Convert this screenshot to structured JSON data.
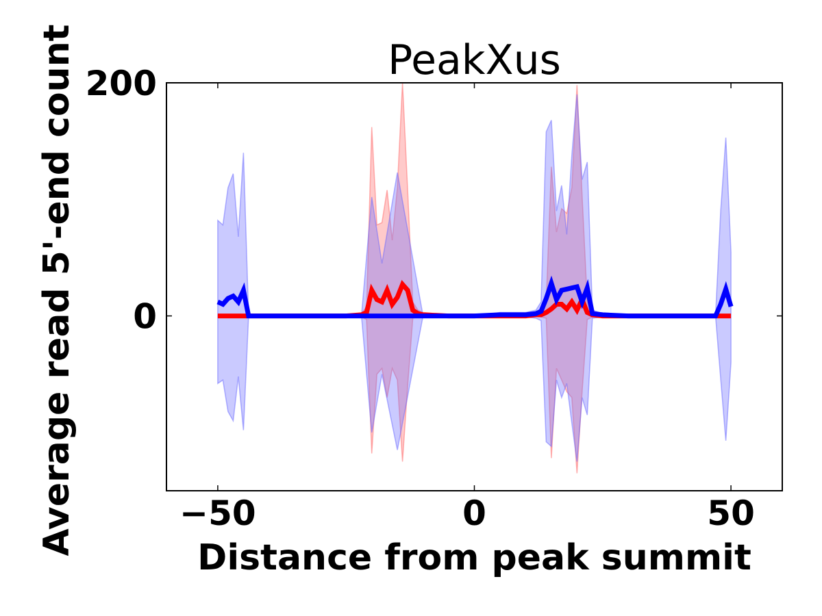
{
  "chart_data": {
    "type": "line",
    "title": "PeakXus",
    "xlabel": "Distance from peak summit",
    "ylabel": "Average read 5'-end count",
    "xlim": [
      -60,
      60
    ],
    "ylim": [
      -150,
      200
    ],
    "xticks": [
      -50,
      0,
      50
    ],
    "xtick_labels": [
      "−50",
      "0",
      "50"
    ],
    "yticks": [
      0,
      200
    ],
    "ytick_labels": [
      "0",
      "200"
    ],
    "grid": false,
    "legend": "none",
    "series": [
      {
        "color": "#ff0000",
        "band_color": "#ff6666",
        "x": [
          -50,
          -45,
          -44,
          -40,
          -30,
          -25,
          -22,
          -21,
          -20,
          -19,
          -18,
          -17,
          -16,
          -15,
          -14,
          -13,
          -12,
          -11,
          -10,
          -5,
          0,
          5,
          10,
          12,
          13,
          14,
          15,
          16,
          17,
          18,
          19,
          20,
          21,
          22,
          23,
          25,
          30,
          40,
          45,
          49,
          50
        ],
        "values": [
          0,
          0,
          0,
          0,
          0,
          0,
          1,
          3,
          22,
          14,
          12,
          22,
          10,
          16,
          27,
          22,
          5,
          2,
          1,
          0,
          0,
          0,
          0,
          1,
          1,
          3,
          6,
          10,
          10,
          6,
          12,
          5,
          14,
          3,
          1,
          0,
          0,
          0,
          0,
          0,
          0
        ],
        "upper": [
          0,
          0,
          0,
          0,
          0,
          0,
          2,
          8,
          162,
          78,
          80,
          108,
          65,
          110,
          200,
          108,
          12,
          5,
          3,
          1,
          0,
          0,
          1,
          2,
          3,
          12,
          128,
          72,
          92,
          88,
          110,
          198,
          103,
          12,
          3,
          1,
          0,
          0,
          0,
          0,
          0
        ],
        "lower": [
          0,
          0,
          0,
          0,
          0,
          0,
          -1,
          -3,
          -118,
          -50,
          -45,
          -70,
          -45,
          -55,
          -125,
          -60,
          -2,
          -1,
          0,
          0,
          0,
          0,
          0,
          0,
          -1,
          -2,
          -122,
          -45,
          -55,
          -65,
          -70,
          -135,
          -65,
          -3,
          -1,
          0,
          0,
          0,
          0,
          0,
          0
        ]
      },
      {
        "color": "#0000ff",
        "band_color": "#6666ff",
        "x": [
          -50,
          -49,
          -48,
          -47,
          -46,
          -45,
          -44,
          -43,
          -40,
          -30,
          -22,
          -20,
          -18,
          -15,
          -10,
          -5,
          0,
          5,
          10,
          12,
          13,
          14,
          15,
          16,
          17,
          18,
          19,
          20,
          21,
          22,
          23,
          25,
          30,
          40,
          45,
          47,
          48,
          49,
          50
        ],
        "values": [
          12,
          10,
          15,
          17,
          12,
          22,
          0,
          0,
          0,
          0,
          0,
          0,
          0,
          0,
          0,
          0,
          0,
          1,
          1,
          2,
          4,
          15,
          28,
          14,
          22,
          23,
          24,
          25,
          12,
          24,
          2,
          1,
          0,
          0,
          0,
          0,
          10,
          23,
          8
        ],
        "upper": [
          82,
          78,
          110,
          122,
          68,
          140,
          0,
          0,
          0,
          0,
          0,
          102,
          45,
          123,
          0,
          0,
          0,
          3,
          3,
          5,
          12,
          158,
          168,
          90,
          112,
          70,
          138,
          190,
          117,
          132,
          5,
          2,
          0,
          0,
          0,
          0,
          90,
          153,
          55
        ],
        "lower": [
          -58,
          -55,
          -82,
          -90,
          -52,
          -98,
          0,
          0,
          0,
          0,
          0,
          -100,
          -50,
          -115,
          0,
          0,
          0,
          -1,
          -1,
          -2,
          -4,
          -108,
          -112,
          -55,
          -70,
          -58,
          -92,
          -125,
          -70,
          -85,
          -2,
          -1,
          0,
          0,
          0,
          0,
          -54,
          -107,
          -40
        ]
      }
    ]
  }
}
